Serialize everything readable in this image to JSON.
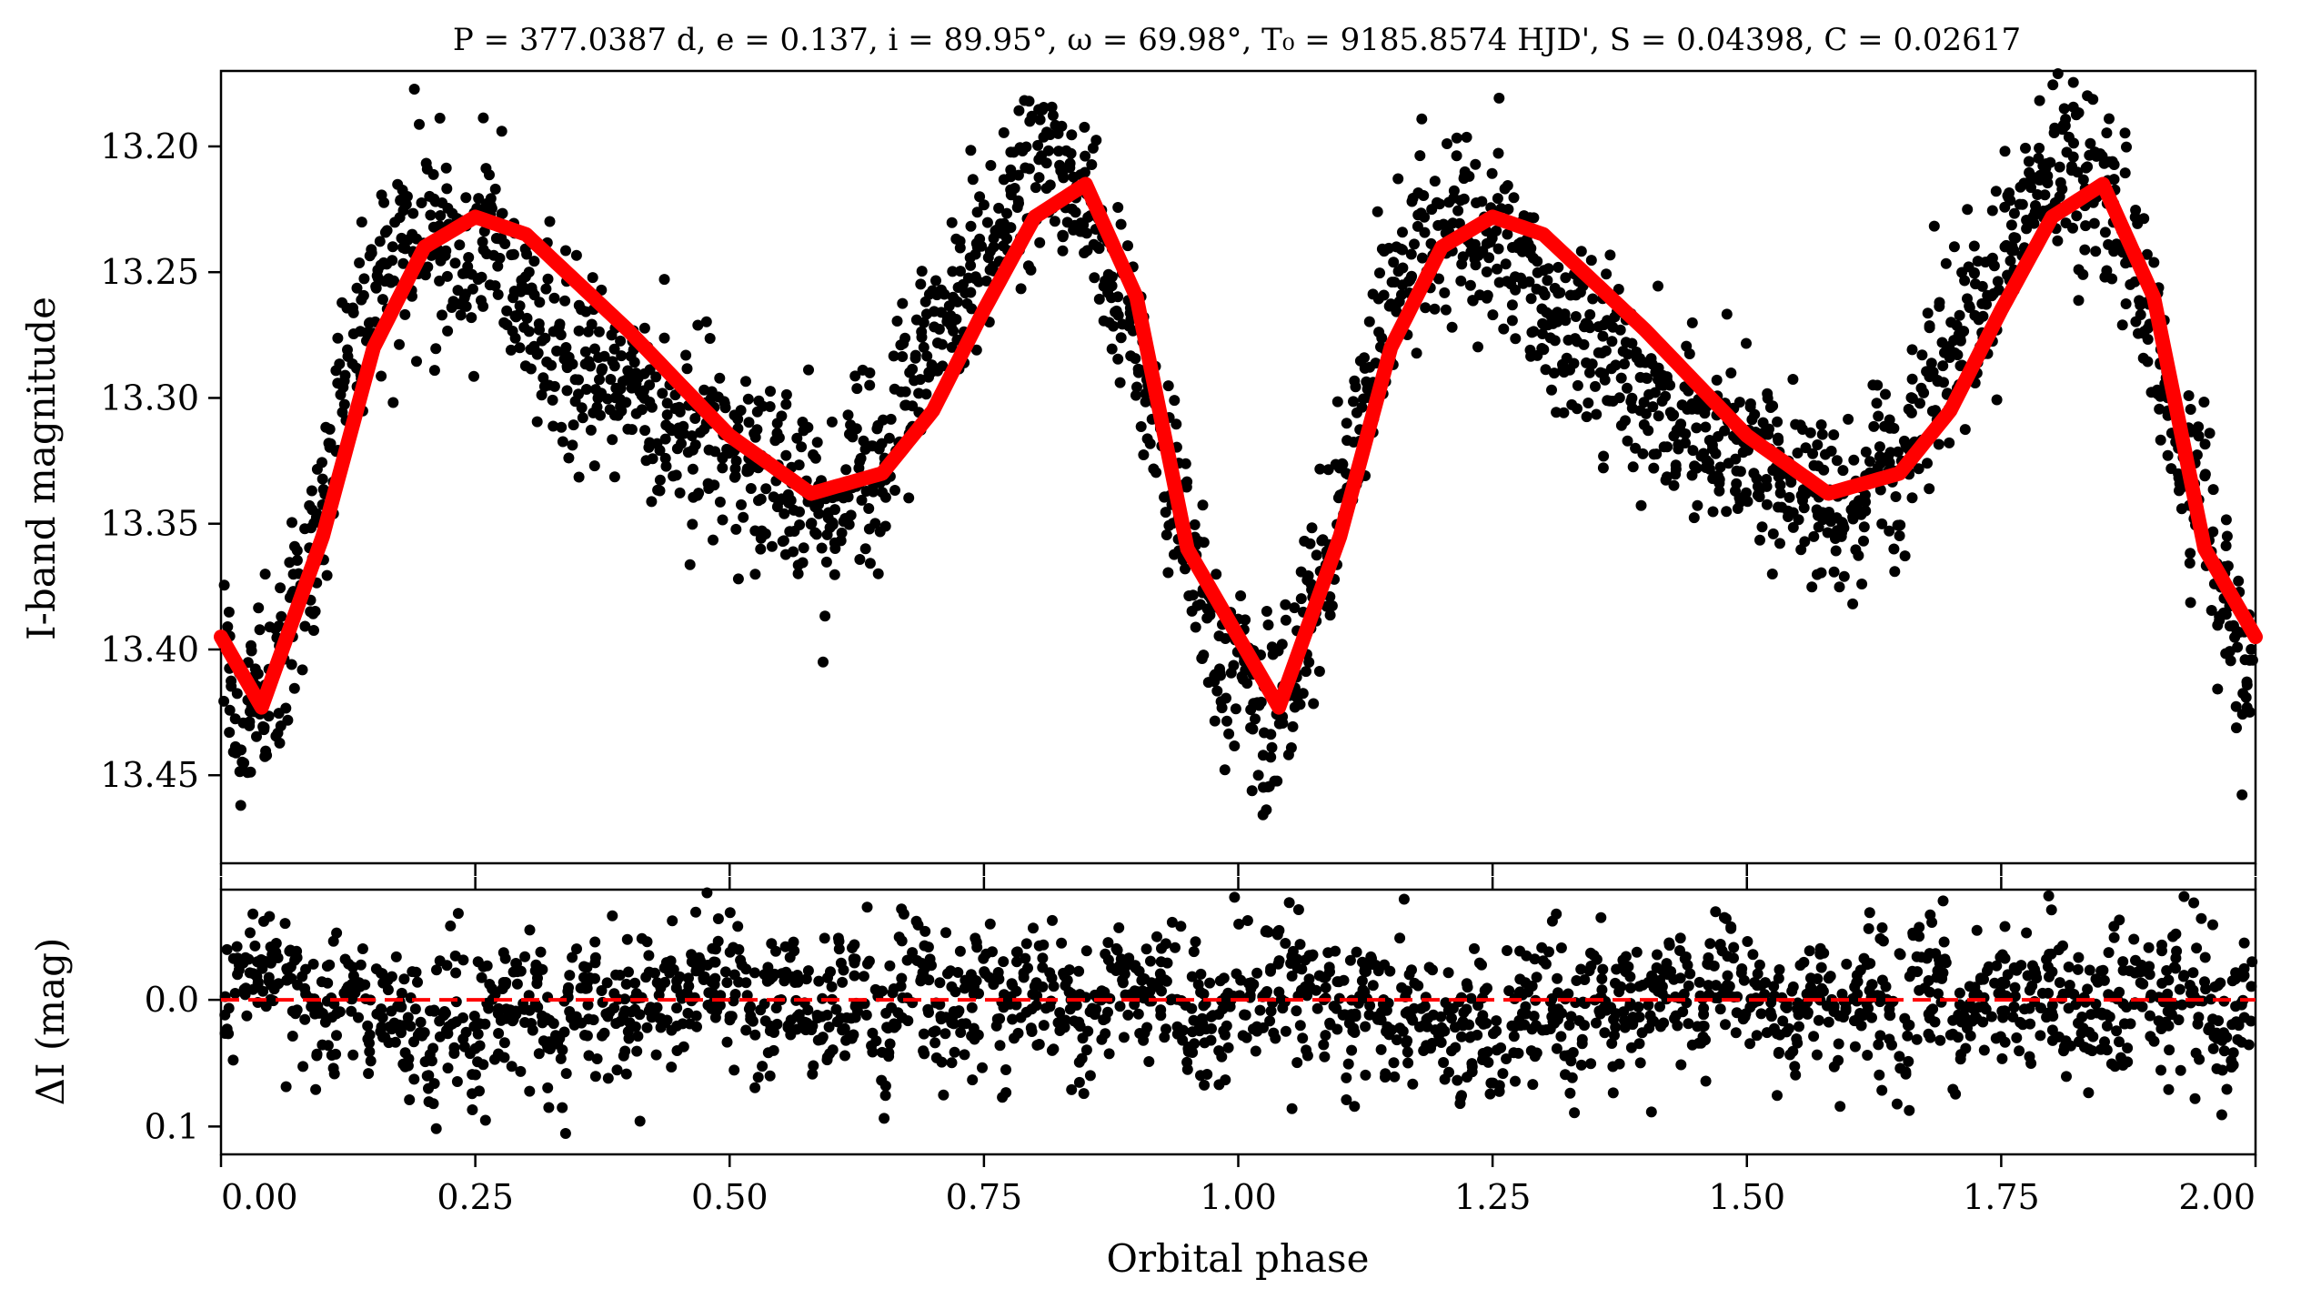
{
  "chart_data": [
    {
      "id": "light-curve",
      "type": "scatter",
      "title": "P = 377.0387 d, e = 0.137, i = 89.95°, ω = 69.98°, T₀ = 9185.8574 HJD', S = 0.04398, C = 0.02617",
      "xlabel": "",
      "ylabel": "I-band magnitude",
      "xlim": [
        0.0,
        2.0
      ],
      "ylim": [
        13.485,
        13.17
      ],
      "y_inverted": true,
      "yticks": [
        13.2,
        13.25,
        13.3,
        13.35,
        13.4,
        13.45
      ],
      "ytick_labels": [
        "13.20",
        "13.25",
        "13.30",
        "13.35",
        "13.40",
        "13.45"
      ],
      "xticks": [
        0.0,
        0.25,
        0.5,
        0.75,
        1.0,
        1.25,
        1.5,
        1.75,
        2.0
      ],
      "grid": false,
      "observations_color": "#000000",
      "model_color": "#ff0000",
      "model_x": [
        0.0,
        0.04,
        0.1,
        0.15,
        0.2,
        0.25,
        0.3,
        0.4,
        0.5,
        0.58,
        0.65,
        0.7,
        0.75,
        0.8,
        0.85,
        0.9,
        0.95,
        1.0
      ],
      "model_y": [
        13.395,
        13.423,
        13.355,
        13.28,
        13.24,
        13.228,
        13.235,
        13.273,
        13.315,
        13.338,
        13.33,
        13.305,
        13.265,
        13.228,
        13.215,
        13.26,
        13.36,
        13.395
      ],
      "observations_x": [
        0.0,
        0.01,
        0.02,
        0.03,
        0.04,
        0.05,
        0.06,
        0.07,
        0.08,
        0.09,
        0.1,
        0.11,
        0.12,
        0.13,
        0.14,
        0.15,
        0.16,
        0.17,
        0.18,
        0.19,
        0.2,
        0.21,
        0.22,
        0.23,
        0.24,
        0.25,
        0.26,
        0.27,
        0.28,
        0.29,
        0.3,
        0.31,
        0.32,
        0.33,
        0.34,
        0.35,
        0.36,
        0.37,
        0.38,
        0.39,
        0.4,
        0.41,
        0.42,
        0.43,
        0.44,
        0.45,
        0.46,
        0.47,
        0.48,
        0.49,
        0.5,
        0.51,
        0.52,
        0.53,
        0.54,
        0.55,
        0.56,
        0.57,
        0.58,
        0.59,
        0.6,
        0.61,
        0.62,
        0.63,
        0.64,
        0.65,
        0.66,
        0.67,
        0.68,
        0.69,
        0.7,
        0.71,
        0.72,
        0.73,
        0.74,
        0.75,
        0.76,
        0.77,
        0.78,
        0.79,
        0.8,
        0.81,
        0.82,
        0.83,
        0.84,
        0.85,
        0.86,
        0.87,
        0.88,
        0.89,
        0.9,
        0.91,
        0.92,
        0.93,
        0.94,
        0.95,
        0.96,
        0.97,
        0.98,
        0.99
      ],
      "observations_y": [
        13.39,
        13.42,
        13.44,
        13.43,
        13.41,
        13.42,
        13.4,
        13.39,
        13.37,
        13.36,
        13.34,
        13.32,
        13.3,
        13.28,
        13.27,
        13.26,
        13.25,
        13.25,
        13.24,
        13.24,
        13.23,
        13.24,
        13.23,
        13.24,
        13.25,
        13.24,
        13.23,
        13.24,
        13.25,
        13.25,
        13.26,
        13.27,
        13.27,
        13.28,
        13.28,
        13.29,
        13.28,
        13.29,
        13.29,
        13.3,
        13.29,
        13.3,
        13.3,
        13.31,
        13.3,
        13.31,
        13.31,
        13.32,
        13.31,
        13.32,
        13.32,
        13.33,
        13.32,
        13.33,
        13.33,
        13.33,
        13.34,
        13.34,
        13.33,
        13.35,
        13.34,
        13.35,
        13.33,
        13.32,
        13.33,
        13.33,
        13.31,
        13.3,
        13.29,
        13.28,
        13.28,
        13.27,
        13.26,
        13.26,
        13.25,
        13.24,
        13.24,
        13.23,
        13.22,
        13.21,
        13.21,
        13.2,
        13.21,
        13.22,
        13.21,
        13.21,
        13.23,
        13.24,
        13.25,
        13.26,
        13.28,
        13.3,
        13.31,
        13.33,
        13.34,
        13.35,
        13.37,
        13.38,
        13.4,
        13.41
      ]
    },
    {
      "id": "residuals",
      "type": "scatter",
      "xlabel": "Orbital phase",
      "ylabel": "ΔI (mag)",
      "xlim": [
        0.0,
        2.0
      ],
      "ylim": [
        0.122,
        -0.087
      ],
      "y_inverted": true,
      "yticks": [
        0.0,
        0.1
      ],
      "ytick_labels": [
        "0.0",
        "0.1"
      ],
      "xticks": [
        0.0,
        0.25,
        0.5,
        0.75,
        1.0,
        1.25,
        1.5,
        1.75,
        2.0
      ],
      "xtick_labels": [
        "0.00",
        "0.25",
        "0.50",
        "0.75",
        "1.00",
        "1.25",
        "1.50",
        "1.75",
        "2.00"
      ],
      "zero_line": 0.0,
      "zero_line_color": "#ff0000",
      "observations_color": "#000000",
      "residual_x": [
        0.0,
        0.02,
        0.04,
        0.06,
        0.08,
        0.1,
        0.12,
        0.14,
        0.16,
        0.18,
        0.2,
        0.22,
        0.24,
        0.26,
        0.28,
        0.3,
        0.32,
        0.34,
        0.36,
        0.38,
        0.4,
        0.42,
        0.44,
        0.46,
        0.48,
        0.5,
        0.52,
        0.54,
        0.56,
        0.58,
        0.6,
        0.62,
        0.64,
        0.66,
        0.68,
        0.7,
        0.72,
        0.74,
        0.76,
        0.78,
        0.8,
        0.82,
        0.84,
        0.86,
        0.88,
        0.9,
        0.92,
        0.94,
        0.96,
        0.98
      ],
      "residual_y": [
        0.01,
        -0.04,
        -0.05,
        -0.02,
        0.01,
        0.03,
        -0.02,
        0.04,
        0.02,
        0.05,
        0.07,
        0.04,
        0.09,
        0.03,
        0.02,
        0.01,
        0.08,
        -0.02,
        0.01,
        0.03,
        -0.01,
        -0.03,
        0.02,
        -0.06,
        -0.04,
        -0.02,
        0.03,
        0.01,
        -0.02,
        0.04,
        0.02,
        -0.03,
        0.06,
        -0.05,
        -0.06,
        0.04,
        0.01,
        -0.02,
        0.03,
        -0.04,
        -0.03,
        0.02,
        0.04,
        -0.01,
        -0.05,
        0.02,
        -0.04,
        0.03,
        0.05,
        0.01
      ]
    }
  ]
}
